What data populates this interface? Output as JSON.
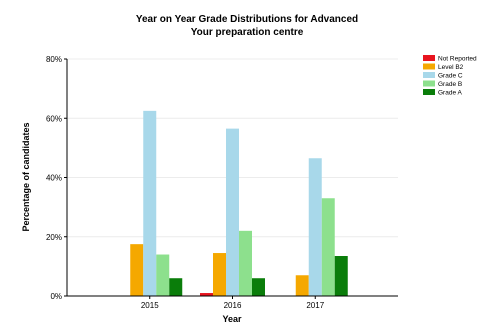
{
  "chart_data": {
    "type": "bar",
    "title": "Year on Year Grade Distributions for Advanced",
    "subtitle": "Your preparation centre",
    "xlabel": "Year",
    "ylabel": "Percentage of candidates",
    "categories": [
      "2015",
      "2016",
      "2017"
    ],
    "ylim": [
      0,
      80
    ],
    "yticks": [
      "0%",
      "20%",
      "40%",
      "60%",
      "80%"
    ],
    "legend_position": "right",
    "series": [
      {
        "name": "Not Reported",
        "color": "#e8141e",
        "values": [
          0,
          1,
          0
        ]
      },
      {
        "name": "Level B2",
        "color": "#f5a800",
        "values": [
          17.5,
          14.5,
          7
        ]
      },
      {
        "name": "Grade C",
        "color": "#a8d8ea",
        "values": [
          62.5,
          56.5,
          46.5
        ]
      },
      {
        "name": "Grade B",
        "color": "#8de08d",
        "values": [
          14,
          22,
          33
        ]
      },
      {
        "name": "Grade A",
        "color": "#0a7d0a",
        "values": [
          6,
          6,
          13.5
        ]
      }
    ]
  }
}
